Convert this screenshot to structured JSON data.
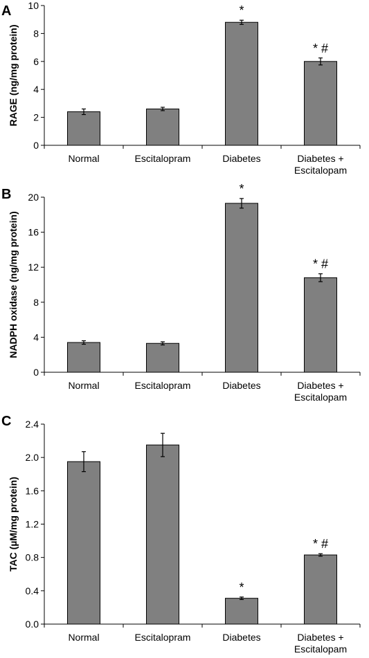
{
  "chart_data": [
    {
      "type": "bar",
      "panel_label": "A",
      "ylabel": "RAGE (ng/mg protein)",
      "ylim": [
        0,
        10
      ],
      "yticks": [
        "0",
        "2",
        "4",
        "6",
        "8",
        "10"
      ],
      "categories": [
        [
          "Normal"
        ],
        [
          "Escitalopram"
        ],
        [
          "Diabetes"
        ],
        [
          "Diabetes +",
          "Escitalopam"
        ]
      ],
      "values": [
        2.4,
        2.6,
        8.8,
        6.0
      ],
      "errors": [
        0.2,
        0.12,
        0.15,
        0.25
      ],
      "annotations": [
        "",
        "",
        "*",
        "* #"
      ],
      "grid": false,
      "bar_color": "#808080"
    },
    {
      "type": "bar",
      "panel_label": "B",
      "ylabel": "NADPH oxidase (ng/mg protein)",
      "ylim": [
        0,
        20
      ],
      "yticks": [
        "0",
        "4",
        "8",
        "12",
        "16",
        "20"
      ],
      "categories": [
        [
          "Normal"
        ],
        [
          "Escitalopram"
        ],
        [
          "Diabetes"
        ],
        [
          "Diabetes +",
          "Escitalopam"
        ]
      ],
      "values": [
        3.4,
        3.3,
        19.3,
        10.8
      ],
      "errors": [
        0.2,
        0.18,
        0.55,
        0.45
      ],
      "annotations": [
        "",
        "",
        "*",
        "* #"
      ],
      "grid": false,
      "bar_color": "#808080"
    },
    {
      "type": "bar",
      "panel_label": "C",
      "ylabel": "TAC (µM/mg protein)",
      "ylim": [
        0,
        2.4
      ],
      "yticks": [
        "0.0",
        "0.4",
        "0.8",
        "1.2",
        "1.6",
        "2.0",
        "2.4"
      ],
      "categories": [
        [
          "Normal"
        ],
        [
          "Escitalopram"
        ],
        [
          "Diabetes"
        ],
        [
          "Diabetes +",
          "Escitalopam"
        ]
      ],
      "values": [
        1.95,
        2.15,
        0.31,
        0.83
      ],
      "errors": [
        0.12,
        0.14,
        0.015,
        0.015
      ],
      "annotations": [
        "",
        "",
        "*",
        "* #"
      ],
      "grid": false,
      "bar_color": "#808080"
    }
  ]
}
